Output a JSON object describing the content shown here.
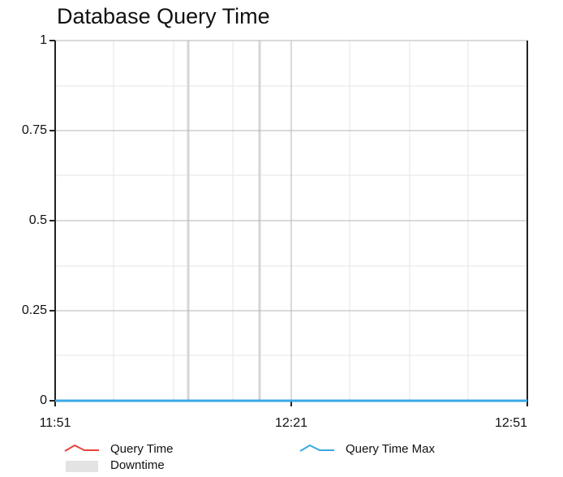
{
  "chart_data": {
    "type": "line",
    "title": "Database Query Time",
    "categories": [
      "11:51",
      "12:21",
      "12:51"
    ],
    "series": [
      {
        "name": "Query Time",
        "color": "#e8413b",
        "values": [
          0,
          0,
          0
        ]
      },
      {
        "name": "Query Time Max",
        "color": "#3aa7e6",
        "values": [
          0,
          0,
          0
        ]
      }
    ],
    "downtime": {
      "name": "Downtime",
      "color": "#e3e3e3"
    },
    "ylim": [
      0,
      1
    ],
    "yticks": [
      0,
      0.25,
      0.5,
      0.75,
      1
    ],
    "grid": true
  }
}
